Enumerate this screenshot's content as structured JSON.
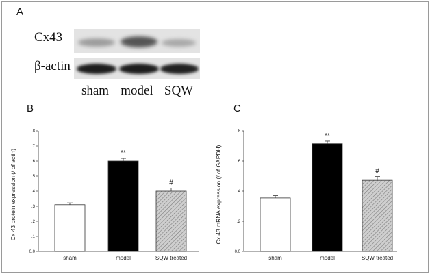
{
  "panels": {
    "a": "A",
    "b": "B",
    "c": "C"
  },
  "blot": {
    "rows": [
      "Cx43",
      "β-actin"
    ],
    "lanes": [
      "sham",
      "model",
      "SQW"
    ]
  },
  "colors": {
    "sham": "#ffffff",
    "model": "#000000",
    "treated": "#c8c8c8"
  },
  "chart_data": [
    {
      "type": "bar",
      "panel": "B",
      "categories": [
        "sham",
        "model",
        "SQW treated"
      ],
      "values": [
        0.31,
        0.6,
        0.4
      ],
      "errors": [
        0.012,
        0.018,
        0.02
      ],
      "annotations": [
        "",
        "**",
        "#"
      ],
      "ylabel": "Cx 43 protein expression (/ of actin)",
      "xlabel": "",
      "ylim": [
        0,
        0.8
      ],
      "yticks": [
        "0.0",
        ".1",
        ".2",
        ".3",
        ".4",
        ".5",
        ".6",
        ".7",
        ".8"
      ]
    },
    {
      "type": "bar",
      "panel": "C",
      "categories": [
        "sham",
        "model",
        "SQW treated"
      ],
      "values": [
        0.355,
        0.715,
        0.472
      ],
      "errors": [
        0.015,
        0.017,
        0.025
      ],
      "annotations": [
        "",
        "**",
        "#"
      ],
      "ylabel": "Cx 43 mRNA expression (/ of GAPDH)",
      "xlabel": "",
      "ylim": [
        0,
        0.8
      ],
      "yticks": [
        "0.0",
        ".2",
        ".4",
        ".6",
        ".8"
      ]
    }
  ]
}
